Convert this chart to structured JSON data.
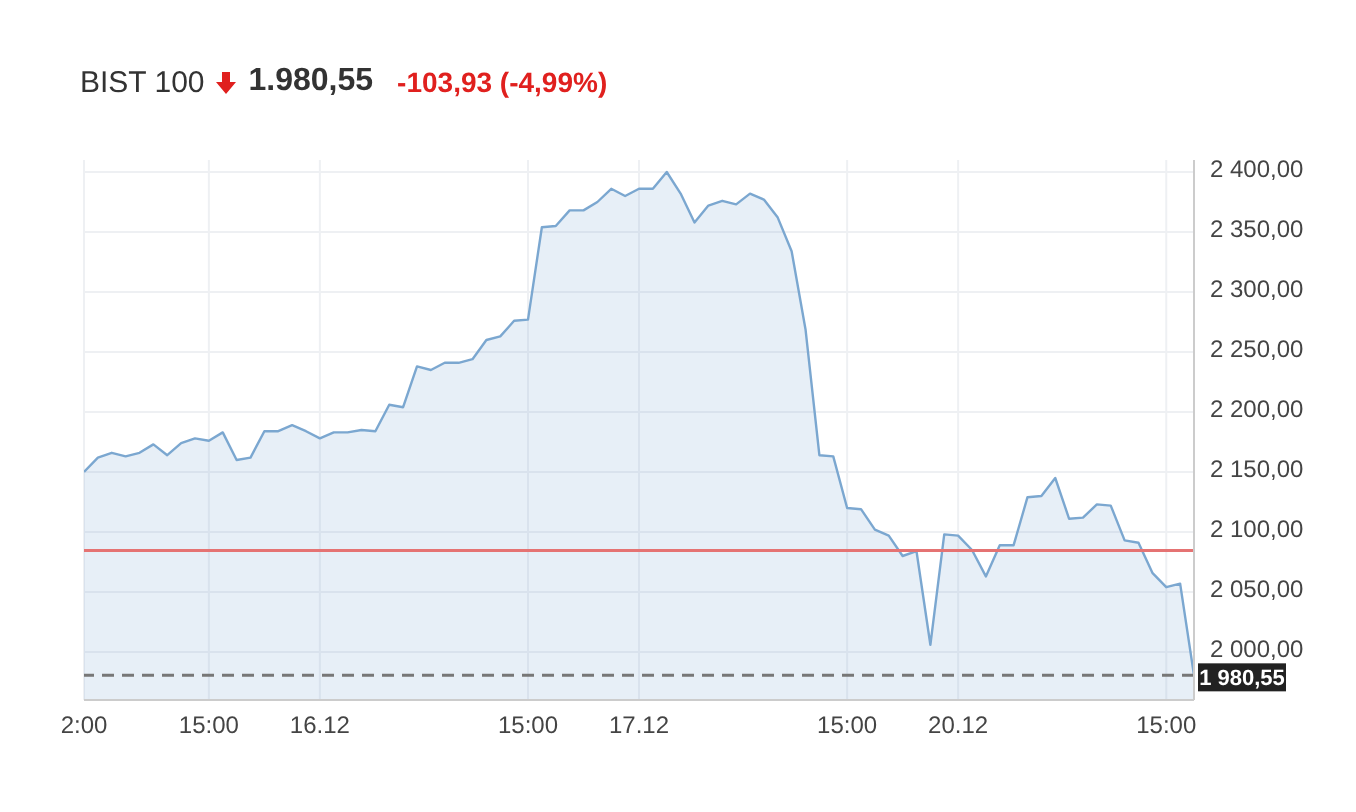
{
  "chart_data": {
    "type": "area",
    "title": "BIST 100",
    "subtitle": "1.980,55",
    "annotations": [
      "-103,93 (-4,99%)"
    ],
    "categories": [
      "2:00",
      null,
      null,
      null,
      null,
      null,
      null,
      null,
      null,
      "15:00",
      null,
      null,
      null,
      null,
      null,
      null,
      null,
      "16.12",
      null,
      null,
      null,
      null,
      null,
      null,
      null,
      null,
      null,
      null,
      null,
      null,
      null,
      null,
      "15:00",
      null,
      null,
      null,
      null,
      null,
      null,
      null,
      "17.12",
      null,
      null,
      null,
      null,
      null,
      null,
      null,
      null,
      null,
      null,
      null,
      null,
      null,
      null,
      "15:00",
      null,
      null,
      null,
      null,
      null,
      null,
      null,
      "20.12",
      null,
      null,
      null,
      null,
      null,
      null,
      null,
      null,
      null,
      null,
      null,
      null,
      null,
      null,
      "15:00",
      null,
      null
    ],
    "series": [
      {
        "color": "#7ba7d0",
        "values": [
          2150,
          2162,
          2166,
          2163,
          2166,
          2173,
          2164,
          2174,
          2178,
          2176,
          2183,
          2160,
          2162,
          2184,
          2184,
          2189,
          2184,
          2178,
          2183,
          2183,
          2185,
          2184,
          2206,
          2204,
          2238,
          2235,
          2241,
          2241,
          2244,
          2260,
          2263,
          2276,
          2277,
          2354,
          2355,
          2368,
          2368,
          2375,
          2386,
          2380,
          2386,
          2386,
          2400,
          2382,
          2358,
          2372,
          2376,
          2373,
          2382,
          2377,
          2362,
          2334,
          2269,
          2164,
          2163,
          2120,
          2119,
          2102,
          2097,
          2080,
          2084,
          2006,
          2098,
          2097,
          2085,
          2063,
          2089,
          2089,
          2129,
          2130,
          2145,
          2111,
          2112,
          2123,
          2122,
          2093,
          2091,
          2066,
          2054,
          2057,
          1980.55
        ]
      }
    ],
    "ylim": [
      1960,
      2410
    ],
    "yticks": [
      {
        "value": 2000,
        "label": "2 000,00"
      },
      {
        "value": 2050,
        "label": "2 050,00"
      },
      {
        "value": 2100,
        "label": "2 100,00"
      },
      {
        "value": 2150,
        "label": "2 150,00"
      },
      {
        "value": 2200,
        "label": "2 200,00"
      },
      {
        "value": 2250,
        "label": "2 250,00"
      },
      {
        "value": 2300,
        "label": "2 300,00"
      },
      {
        "value": 2350,
        "label": "2 350,00"
      },
      {
        "value": 2400,
        "label": "2 400,00"
      }
    ],
    "ref_lines": [
      {
        "axis": "y",
        "value": 2084.48,
        "color": "#e57373",
        "line_style": "solid"
      },
      {
        "axis": "y",
        "value": 1980.55,
        "label": "1 980,55",
        "color": "#777777",
        "line_style": "dashed"
      }
    ],
    "grid": true,
    "marker": "none",
    "line_style": "solid"
  }
}
